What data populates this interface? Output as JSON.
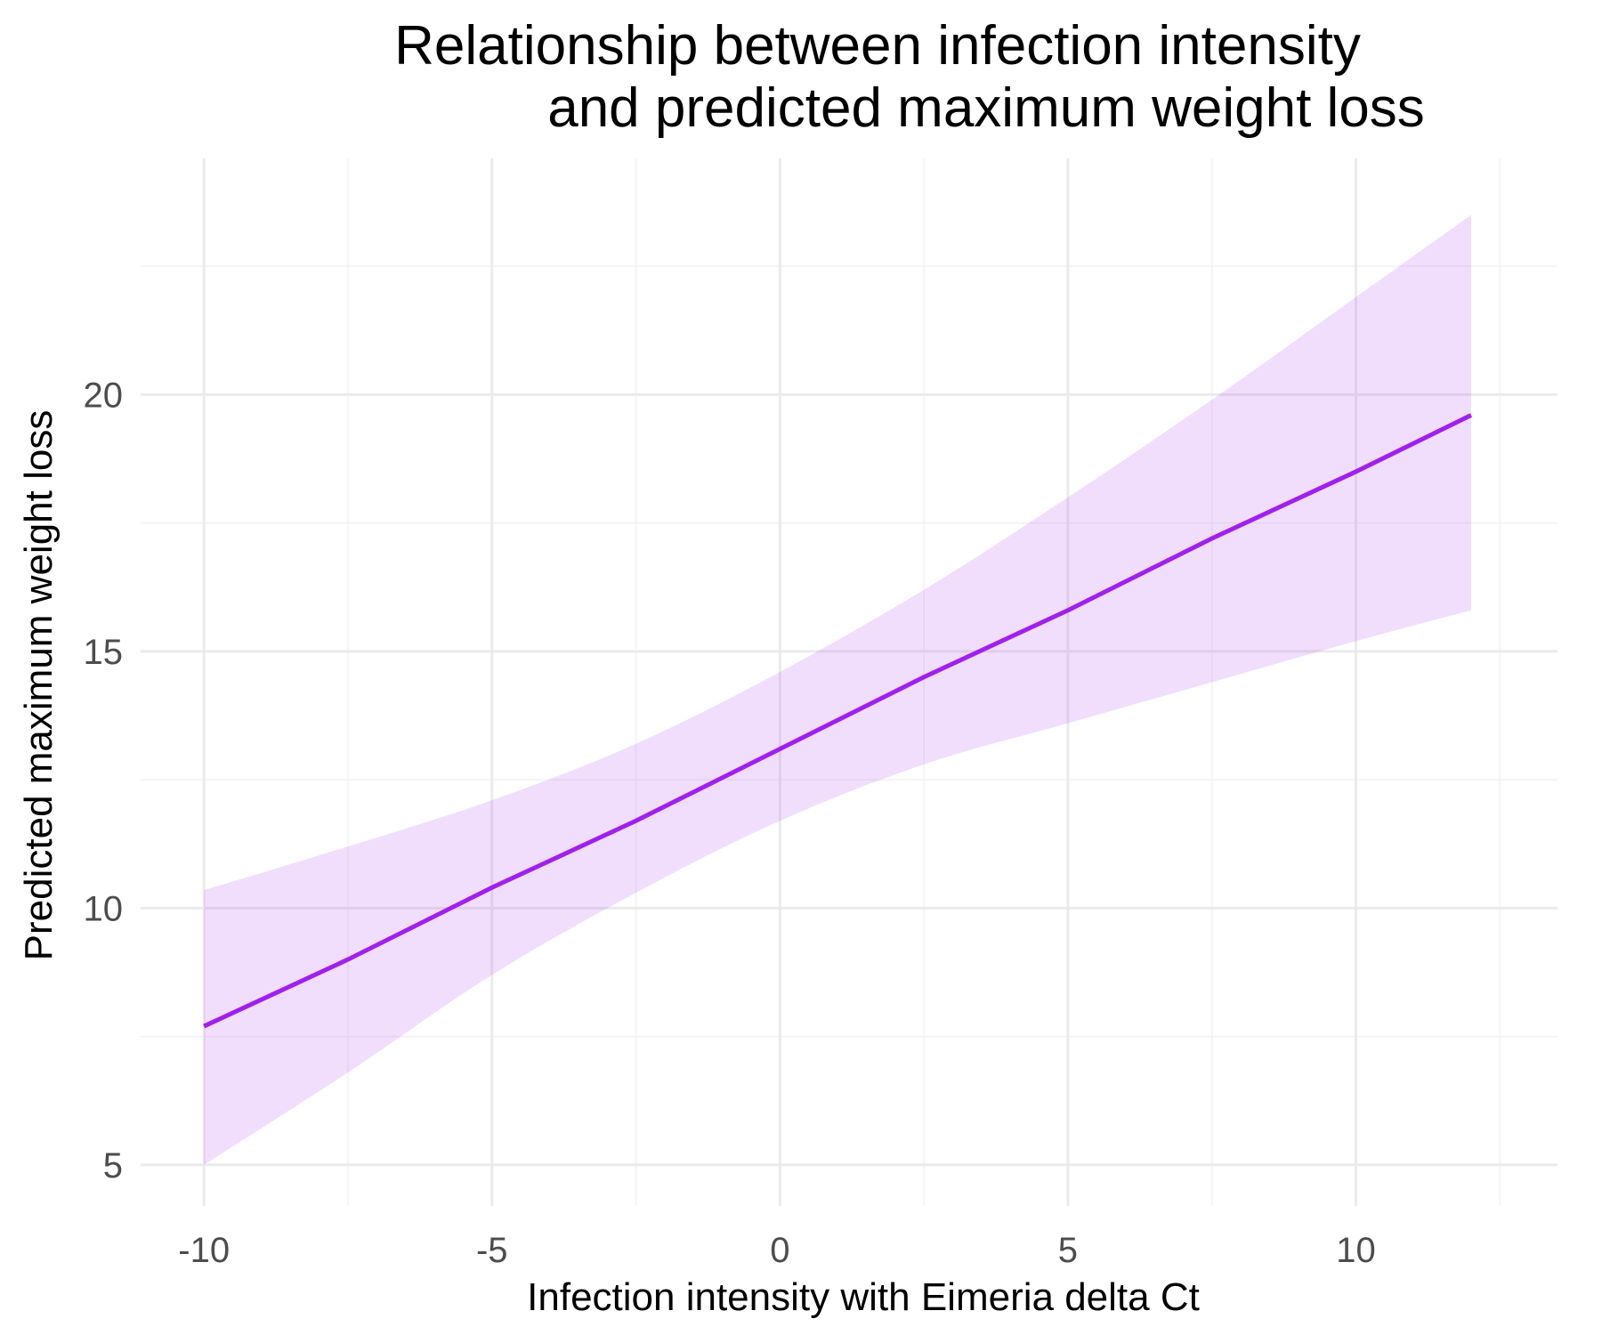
{
  "chart_data": {
    "type": "line",
    "title_lines": [
      "Relationship between infection intensity",
      "and predicted maximum weight loss"
    ],
    "xlabel": "Infection intensity with Eimeria delta Ct",
    "ylabel": "Predicted maximum weight loss",
    "xlim": [
      -11.1,
      13.5
    ],
    "ylim": [
      4.2,
      24.6
    ],
    "x_ticks": [
      -10,
      -5,
      0,
      5,
      10
    ],
    "x_tick_labels": [
      "-10",
      "-5",
      "0",
      "5",
      "10"
    ],
    "y_ticks": [
      5,
      10,
      15,
      20
    ],
    "y_tick_labels": [
      "5",
      "10",
      "15",
      "20"
    ],
    "grid": true,
    "legend": "none",
    "line_color": "#a020f0",
    "band_color": "#a020f0",
    "band_opacity": 0.15,
    "series": [
      {
        "x": [
          -10,
          -7.5,
          -5,
          -2.5,
          0,
          2.5,
          5,
          7.5,
          10,
          12
        ],
        "y": [
          7.7,
          9.0,
          10.4,
          11.7,
          13.1,
          14.5,
          15.8,
          17.2,
          18.5,
          19.6
        ],
        "lower": [
          5.0,
          6.8,
          8.7,
          10.3,
          11.7,
          12.8,
          13.6,
          14.4,
          15.2,
          15.8
        ],
        "upper": [
          10.35,
          11.2,
          12.1,
          13.2,
          14.6,
          16.2,
          18.0,
          19.9,
          21.9,
          23.5
        ]
      }
    ]
  }
}
